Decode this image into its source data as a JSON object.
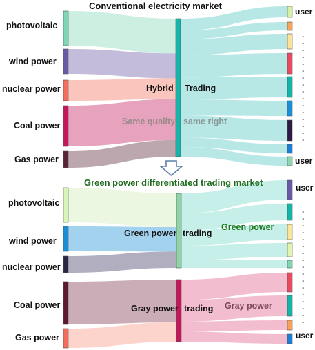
{
  "top": {
    "title": "Conventional electricity market",
    "sources": [
      "photovoltaic",
      "wind power",
      "nuclear power",
      "Coal power",
      "Gas power"
    ],
    "hub_labels": {
      "left": "Hybrid",
      "right": "Trading",
      "quality_left": "Same quality",
      "quality_right": "same right"
    },
    "user_top": "user",
    "user_bottom": "user"
  },
  "arrow_icon": "down-arrow-icon",
  "bottom": {
    "title": "Green power differentiated trading market",
    "sources": [
      "photovoltaic",
      "wind power",
      "nuclear power",
      "Coal power",
      "Gas power"
    ],
    "green_hub": {
      "left": "Green power",
      "right": "trading",
      "out_label": "Green power"
    },
    "gray_hub": {
      "left": "Gray power",
      "right": "trading",
      "out_label": "Gray power"
    },
    "user_top": "user",
    "user_bottom": "user"
  },
  "colors": {
    "photovoltaic": "#7fd6b6",
    "wind_power": "#6a5aa6",
    "nuclear_power": "#f26d5b",
    "coal_power": "#c2185b",
    "gas_power": "#5b2238",
    "hub": "#15b3a8",
    "green_title": "#1e6b1e",
    "green_hub": "#8fd4a6",
    "gray_hub": "#c2185b"
  }
}
